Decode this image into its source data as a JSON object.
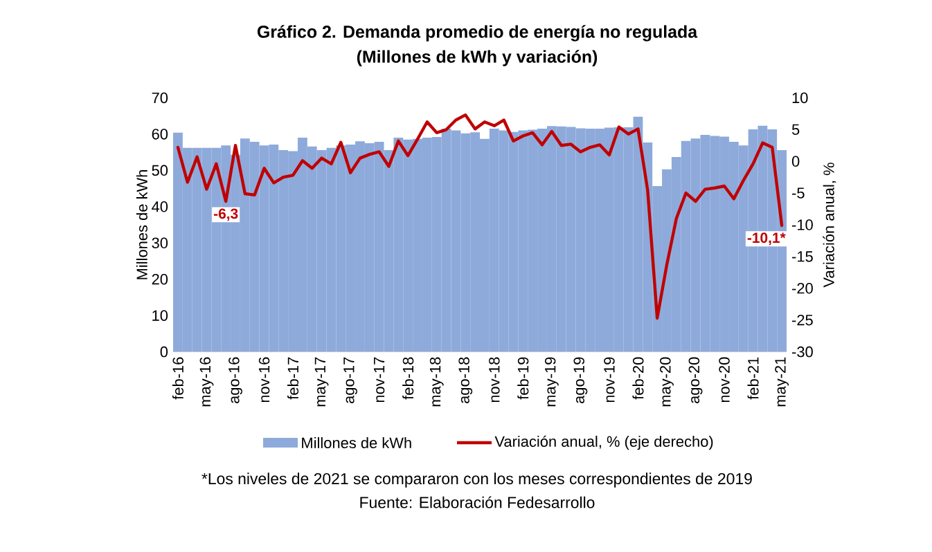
{
  "chart_data": {
    "type": "bar",
    "title": "Gráfico 2. Demanda promedio de energía no regulada",
    "subtitle": "(Millones de kWh y variación)",
    "ylabel": "Millones de kWh",
    "y2label": "Variación anual, %",
    "categories": [
      "feb-16",
      null,
      null,
      "may-16",
      null,
      null,
      "ago-16",
      null,
      null,
      "nov-16",
      null,
      null,
      "feb-17",
      null,
      null,
      "may-17",
      null,
      null,
      "ago-17",
      null,
      null,
      "nov-17",
      null,
      null,
      "feb-18",
      null,
      null,
      "may-18",
      null,
      null,
      "ago-18",
      null,
      null,
      "nov-18",
      null,
      null,
      "feb-19",
      null,
      null,
      "may-19",
      null,
      null,
      "ago-19",
      null,
      null,
      "nov-19",
      null,
      null,
      "feb-20",
      null,
      null,
      "may-20",
      null,
      null,
      "ago-20",
      null,
      null,
      "nov-20",
      null,
      null,
      "feb-21",
      null,
      null,
      "may-21"
    ],
    "series": [
      {
        "name": "Millones de kWh",
        "color": "#8eaadb",
        "values": [
          60.4,
          56.2,
          56.2,
          56.2,
          56.2,
          56.9,
          54.3,
          58.8,
          57.9,
          56.9,
          57.1,
          55.6,
          55.3,
          59,
          56.6,
          55.6,
          56.2,
          56.9,
          57.1,
          58,
          57.5,
          57.9,
          55.6,
          59,
          58.5,
          58.7,
          59,
          59.2,
          61.5,
          61,
          60.2,
          60.5,
          58.7,
          61.5,
          61,
          60.6,
          61,
          61.2,
          61.5,
          62.2,
          62.1,
          62,
          61.6,
          61.5,
          61.5,
          61.8,
          61.9,
          61.9,
          64.8,
          57.7,
          45.7,
          50.3,
          53.7,
          58.1,
          58.8,
          59.8,
          59.5,
          59.3,
          57.9,
          56.9,
          61.3,
          62.3,
          61.3,
          55.6
        ]
      },
      {
        "name": "Variación anual, % (eje derecho)",
        "type": "line",
        "axis": "y2",
        "color": "#c00000",
        "values": [
          2.2,
          -3.3,
          0.7,
          -4.4,
          -0.4,
          -6.3,
          2.5,
          -5.1,
          -5.3,
          -1.1,
          -3.4,
          -2.5,
          -2.2,
          0.1,
          -1.1,
          0.5,
          -0.4,
          3,
          -1.8,
          0.5,
          1.1,
          1.5,
          -0.8,
          3.2,
          0.9,
          3.5,
          6.2,
          4.5,
          5,
          6.5,
          7.3,
          5.1,
          6.2,
          5.6,
          6.5,
          3.2,
          4,
          4.5,
          2.6,
          4.7,
          2.5,
          2.7,
          1.5,
          2.2,
          2.6,
          1,
          5.4,
          4.3,
          5.1,
          -4.5,
          -24.7,
          -16.3,
          -9,
          -5,
          -6.3,
          -4.4,
          -4.2,
          -3.9,
          -5.9,
          -3,
          -0.4,
          2.9,
          2.2,
          -10.1
        ],
        "value_labels": [
          null,
          null,
          null,
          null,
          null,
          "-6,3",
          null,
          null,
          null,
          null,
          null,
          null,
          null,
          null,
          null,
          null,
          null,
          null,
          null,
          null,
          null,
          null,
          null,
          null,
          null,
          null,
          null,
          null,
          null,
          null,
          null,
          null,
          null,
          null,
          null,
          null,
          null,
          null,
          null,
          null,
          null,
          null,
          null,
          null,
          null,
          null,
          null,
          null,
          null,
          null,
          null,
          null,
          null,
          null,
          null,
          null,
          null,
          null,
          null,
          null,
          null,
          null,
          null,
          "-10,1*"
        ]
      }
    ],
    "ylim": [
      0,
      70
    ],
    "yticks": [
      0,
      10,
      20,
      30,
      40,
      50,
      60,
      70
    ],
    "y2lim": [
      -30,
      10
    ],
    "y2ticks": [
      -30,
      -25,
      -20,
      -15,
      -10,
      -5,
      0,
      5,
      10
    ],
    "legend": "bottom",
    "annotations": [
      "*Los niveles de 2021 se compararon con los meses correspondientes de 2019",
      "Fuente: Elaboración Fedesarrollo"
    ]
  }
}
